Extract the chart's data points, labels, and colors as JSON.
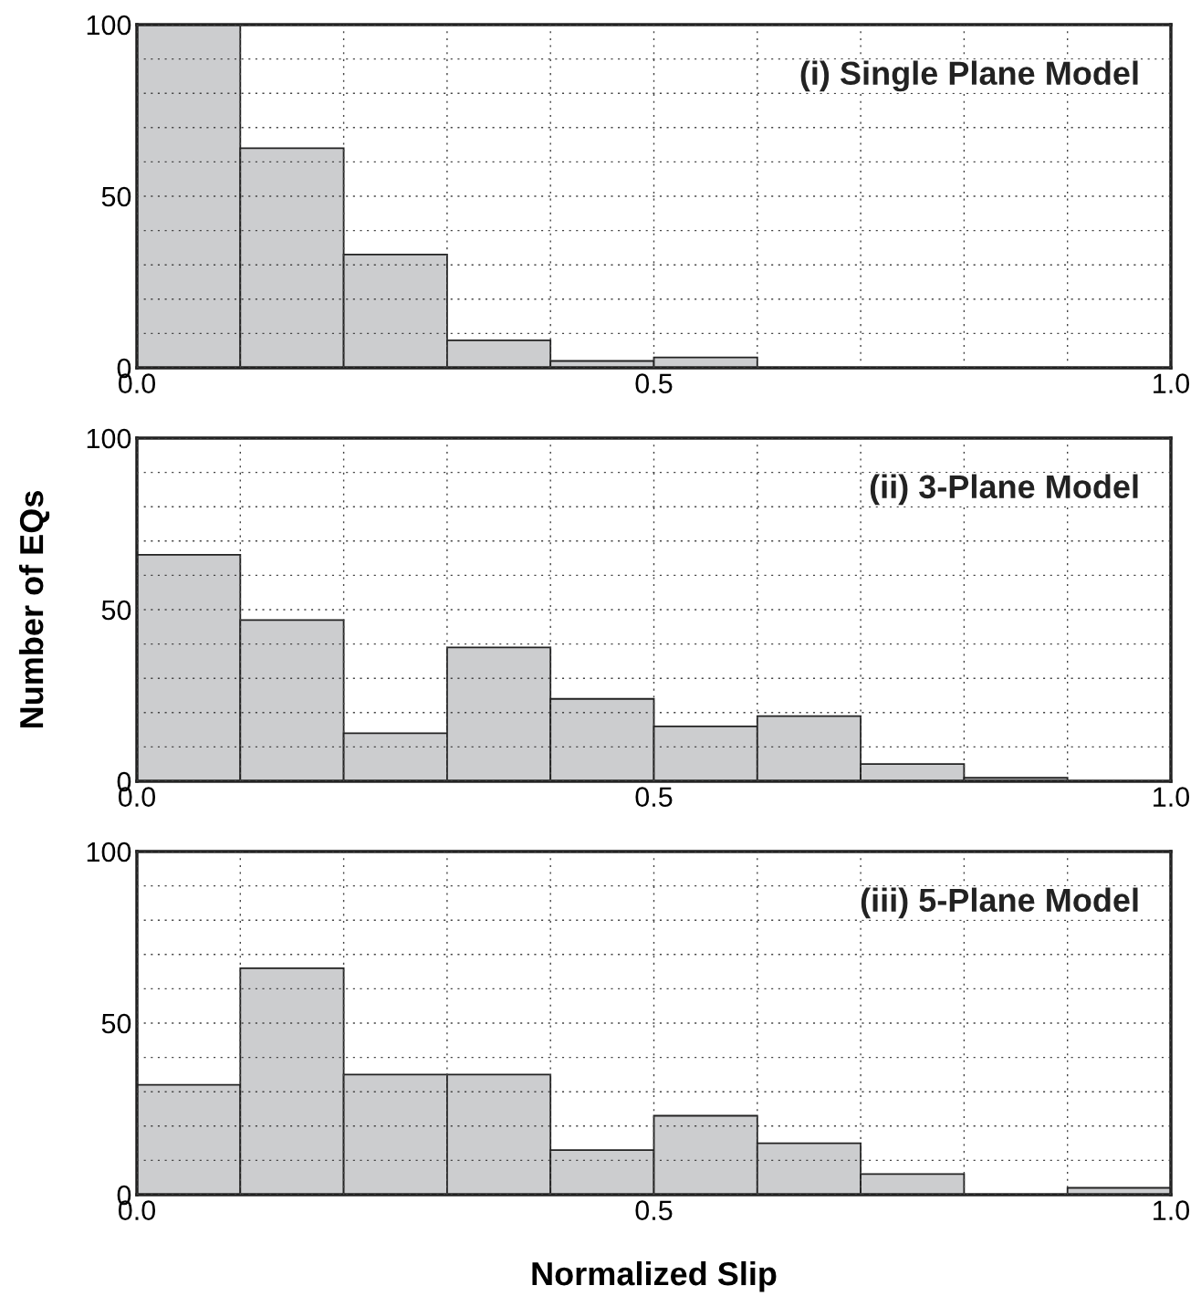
{
  "chart_data": [
    {
      "type": "histogram",
      "bins": [
        0.0,
        0.1,
        0.2,
        0.3,
        0.4,
        0.5,
        0.6,
        0.7,
        0.8,
        0.9,
        1.0
      ],
      "values": [
        100,
        64,
        33,
        8,
        2,
        3,
        0,
        0,
        0,
        0
      ],
      "color": "#cccdcf",
      "annotations": [
        "(i) Single Plane Model"
      ],
      "xlim": [
        0.0,
        1.0
      ],
      "ylim": [
        0,
        100
      ],
      "xticks": [
        {
          "value": 0.0,
          "label": "0.0"
        },
        {
          "value": 0.1,
          "label": null
        },
        {
          "value": 0.2,
          "label": null
        },
        {
          "value": 0.3,
          "label": null
        },
        {
          "value": 0.4,
          "label": null
        },
        {
          "value": 0.5,
          "label": "0.5"
        },
        {
          "value": 0.6,
          "label": null
        },
        {
          "value": 0.7,
          "label": null
        },
        {
          "value": 0.8,
          "label": null
        },
        {
          "value": 0.9,
          "label": null
        },
        {
          "value": 1.0,
          "label": "1.0"
        }
      ],
      "yticks": [
        0,
        {
          "value": 10,
          "label": null
        },
        {
          "value": 20,
          "label": null
        },
        {
          "value": 30,
          "label": null
        },
        {
          "value": 40,
          "label": null
        },
        50,
        {
          "value": 60,
          "label": null
        },
        {
          "value": 70,
          "label": null
        },
        {
          "value": 80,
          "label": null
        },
        {
          "value": 90,
          "label": null
        },
        100
      ],
      "grid": true
    },
    {
      "type": "histogram",
      "bins": [
        0.0,
        0.1,
        0.2,
        0.3,
        0.4,
        0.5,
        0.6,
        0.7,
        0.8,
        0.9,
        1.0
      ],
      "values": [
        66,
        47,
        14,
        39,
        24,
        16,
        19,
        5,
        1,
        0
      ],
      "color": "#cccdcf",
      "annotations": [
        "(ii) 3-Plane Model"
      ],
      "ylabel": "Number of EQs",
      "xlim": [
        0.0,
        1.0
      ],
      "ylim": [
        0,
        100
      ],
      "xticks": [
        {
          "value": 0.0,
          "label": "0.0"
        },
        {
          "value": 0.1,
          "label": null
        },
        {
          "value": 0.2,
          "label": null
        },
        {
          "value": 0.3,
          "label": null
        },
        {
          "value": 0.4,
          "label": null
        },
        {
          "value": 0.5,
          "label": "0.5"
        },
        {
          "value": 0.6,
          "label": null
        },
        {
          "value": 0.7,
          "label": null
        },
        {
          "value": 0.8,
          "label": null
        },
        {
          "value": 0.9,
          "label": null
        },
        {
          "value": 1.0,
          "label": "1.0"
        }
      ],
      "yticks": [
        0,
        {
          "value": 10,
          "label": null
        },
        {
          "value": 20,
          "label": null
        },
        {
          "value": 30,
          "label": null
        },
        {
          "value": 40,
          "label": null
        },
        50,
        {
          "value": 60,
          "label": null
        },
        {
          "value": 70,
          "label": null
        },
        {
          "value": 80,
          "label": null
        },
        {
          "value": 90,
          "label": null
        },
        100
      ],
      "grid": true
    },
    {
      "type": "histogram",
      "bins": [
        0.0,
        0.1,
        0.2,
        0.3,
        0.4,
        0.5,
        0.6,
        0.7,
        0.8,
        0.9,
        1.0
      ],
      "values": [
        32,
        66,
        35,
        35,
        13,
        23,
        15,
        6,
        0,
        2
      ],
      "color": "#cccdcf",
      "annotations": [
        "(iii) 5-Plane Model"
      ],
      "xlabel": "Normalized Slip",
      "xlim": [
        0.0,
        1.0
      ],
      "ylim": [
        0,
        100
      ],
      "xticks": [
        {
          "value": 0.0,
          "label": "0.0"
        },
        {
          "value": 0.1,
          "label": null
        },
        {
          "value": 0.2,
          "label": null
        },
        {
          "value": 0.3,
          "label": null
        },
        {
          "value": 0.4,
          "label": null
        },
        {
          "value": 0.5,
          "label": "0.5"
        },
        {
          "value": 0.6,
          "label": null
        },
        {
          "value": 0.7,
          "label": null
        },
        {
          "value": 0.8,
          "label": null
        },
        {
          "value": 0.9,
          "label": null
        },
        {
          "value": 1.0,
          "label": "1.0"
        }
      ],
      "yticks": [
        0,
        {
          "value": 10,
          "label": null
        },
        {
          "value": 20,
          "label": null
        },
        {
          "value": 30,
          "label": null
        },
        {
          "value": 40,
          "label": null
        },
        50,
        {
          "value": 60,
          "label": null
        },
        {
          "value": 70,
          "label": null
        },
        {
          "value": 80,
          "label": null
        },
        {
          "value": 90,
          "label": null
        },
        100
      ],
      "grid": true
    }
  ]
}
